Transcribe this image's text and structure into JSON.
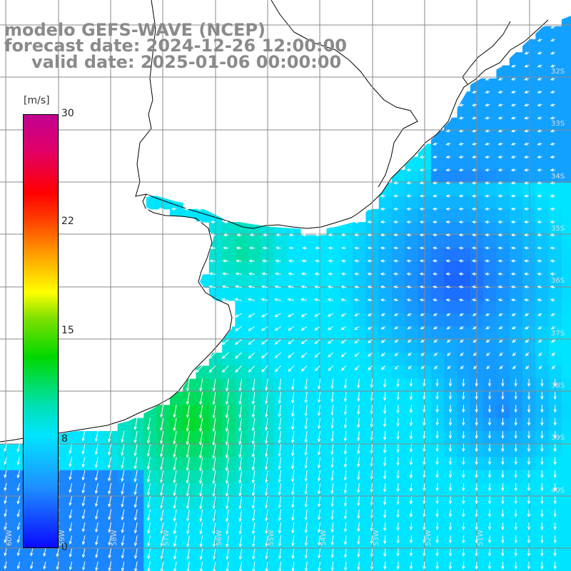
{
  "title": {
    "model": "modelo GEFS-WAVE (NCEP)",
    "forecast": "forecast date: 2024-12-26 12:00:00",
    "valid": "valid date: 2025-01-06 00:00:00"
  },
  "colorbar": {
    "unit": "[m/s]",
    "ticks": [
      "30",
      "22",
      "15",
      "8",
      "0"
    ]
  },
  "lat_labels": [
    "32S",
    "33S",
    "34S",
    "35S",
    "36S",
    "37S",
    "38S",
    "39S",
    "40S"
  ],
  "lon_labels": [
    "60W",
    "59W",
    "58W",
    "57W",
    "56W",
    "55W",
    "54W",
    "53W",
    "52W",
    "51W"
  ],
  "colors": {
    "land": "#ffffff",
    "coast": "#000000",
    "grid": "#888888",
    "arrow": "#ffffff",
    "speed_low": "#0a50f0",
    "speed_mid": "#00d8f0",
    "speed_high": "#40e000"
  }
}
